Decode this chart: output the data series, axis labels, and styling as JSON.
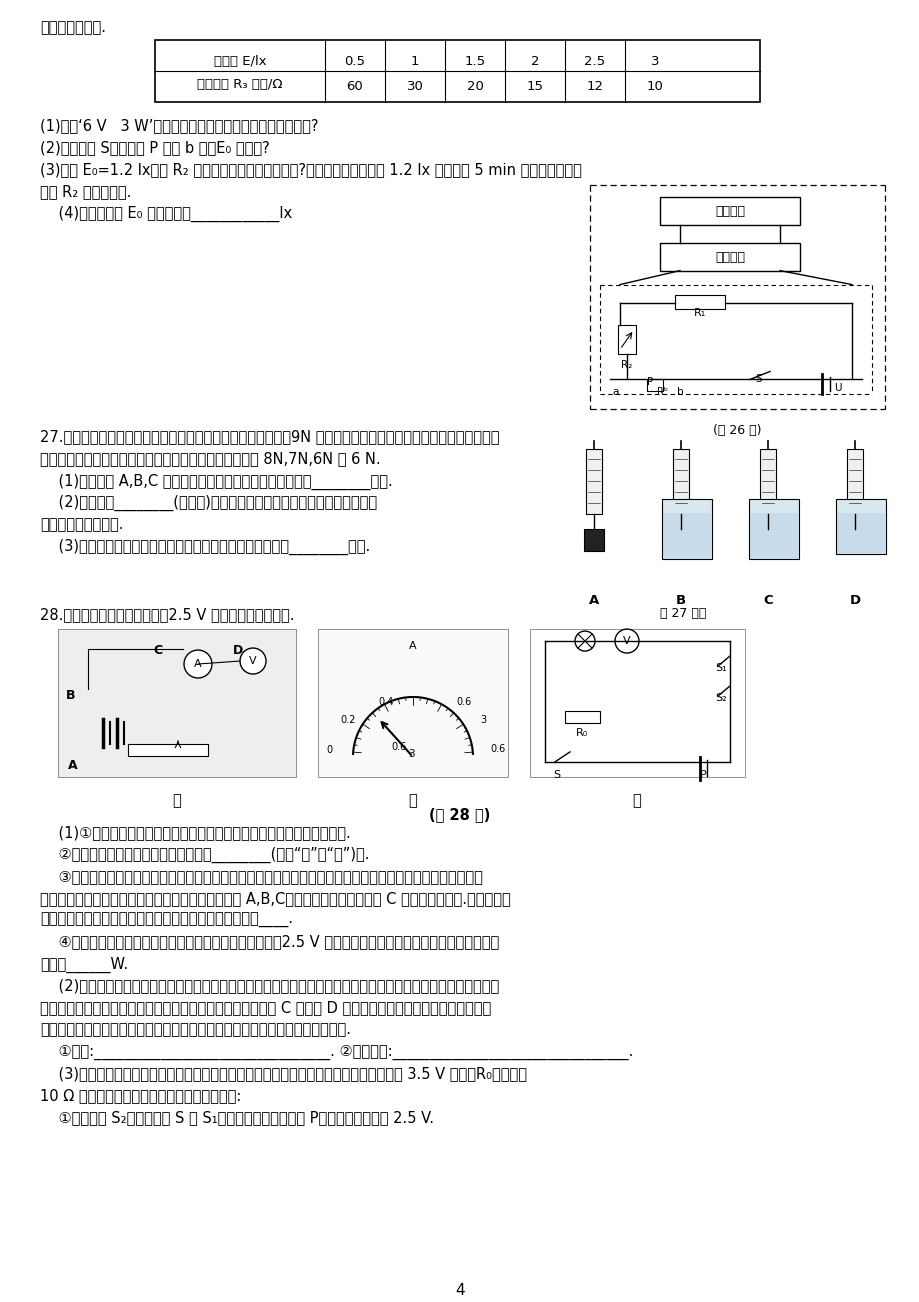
{
  "page_num": "4",
  "bg_color": "#ffffff",
  "text_color": "#000000",
  "table_headers": [
    "光照度 E/lx",
    "0.5",
    "1",
    "1.5",
    "2",
    "2.5",
    "3"
  ],
  "table_row2": [
    "光敏电阵 R₃ 阻值/Ω",
    "60",
    "30",
    "20",
    "15",
    "12",
    "10"
  ],
  "line0": "照明灯自动工作.",
  "q26_1": "(1)标有‘6 V   3 W’字样的照明灯，正常工作时的电流为多大?",
  "q26_2": "(2)闭合开关 S，将滑片 P 移至 b 端，E₀ 为多少?",
  "q26_3": "(3)要使 E₀=1.2 lx，则 R₂ 接入电路的电阵应调为多大?若环境的光照度降至 1.2 lx 时能保持 5 min 不变，求这段时",
  "q26_3b": "间内 R₂ 消耗的电能.",
  "q26_4": "    (4)本系统可调 E₀ 的最小值是____________lx",
  "q27_1": "27.张华为了探究物体受到液体的浮力与哪些因素有关，他将重9N 的铝块挂在弹簧测力计下，缓慢浸入水中，当铝",
  "q27_2": "块分别处于图中的四个位置时，弹簧测力计的示数依次为 8N,7N,6N 和 6 N.",
  "q27_a": "    (1)对比分析 A,B,C 三次实验，可知物体受到液体的浮力与________有关.",
  "q27_b": "    (2)对比分析________(填字母)两次实验，可知物体受到液体的浮力与浸没",
  "q27_b2": "在液体中的深度无关.",
  "q27_c": "    (3)如果再提供一杯盐水，还能探究物体所受浮力与液体的________有关.",
  "q28_0": "28.小明和小华测量额定电压为2.5 V 的小灯泡的额定功率.",
  "fig_caption": "(第 28 题)",
  "q28_1a": "    (1)①图甲是他们连接的部分电路，请用笔画线代替导线将电路连接完整.",
  "q28_1b": "    ②闭合开关前，应将滑动变阵器处在最________(选填“左”或“右”)端.",
  "q28_1c": "    ③闭合开关后，发现无论怎样调节滑动变阵器的滑片，灯泡都不亮，电压表和电流表均无示数，小明找来一根",
  "q28_1c2": "完好的导线，一端连在电源负极，另一端触碰接线柱 A,B,C，当发现只有触碰接线柱 C 时，灯泡才发光.若电路中只",
  "q28_1c3": "有一处故障，且各器材、导线均完好，则电路故障可能是____.",
  "q28_1d": "    ④排除故障后，闭合开关，移动滑动变阵器，当电压表为2.5 V 时，电流表示数如图乙所示，则小灯泡的额定",
  "q28_1d2": "功率为______W.",
  "q28_2": "    (2)小明和小华观察电流表和电压表均标有电阵值，请教老师后得知这是电表的电阵，为了在接好的图甲中较准确",
  "q28_2b": "的测量出小灯泡的电功率，他们对电压表的负接线柱应该接在 C 处还是 D 处进行了探究，他们将开关闭合，移动",
  "q28_2c": "滑动变阵器的滑片使灯泡发光，不添加器材，请你说出接下来的操作及判断方法.",
  "q28_op": "    ①操作:________________________________. ②如何判断:________________________________.",
  "q28_3": "    (3)小明和小华重新设计了一种测量小灯泡额定功率的电路，如图丙所示，电源电压保持 3.5 V 不变，R₀为阻值为",
  "q28_3b": "10 Ω 的定值电阵，连接好电路后进行如下操作:",
  "q28_3c": "    ①断开开关 S₂，闭合开关 S 和 S₁，移动滑动变阵器滑片 P，使电压表示数为 2.5 V."
}
